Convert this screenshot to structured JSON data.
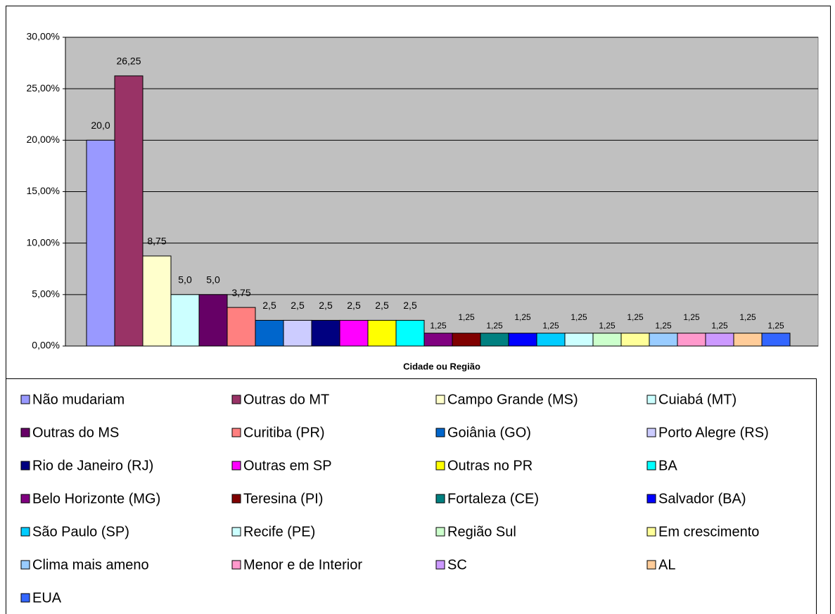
{
  "chart_data": {
    "type": "bar",
    "xlabel": "Cidade ou Região",
    "ylim": [
      0,
      30
    ],
    "yticks": [
      {
        "value": 0,
        "label": "0,00%"
      },
      {
        "value": 5,
        "label": "5,00%"
      },
      {
        "value": 10,
        "label": "10,00%"
      },
      {
        "value": 15,
        "label": "15,00%"
      },
      {
        "value": 20,
        "label": "20,00%"
      },
      {
        "value": 25,
        "label": "25,00%"
      },
      {
        "value": 30,
        "label": "30,00%"
      }
    ],
    "grid": true,
    "plot_color": "#c0c0c0",
    "series": [
      {
        "name": "Não mudariam",
        "color": "#9999ff",
        "values": [
          20.0
        ],
        "value_labels": [
          "20,0"
        ]
      },
      {
        "name": "Outras do MT",
        "color": "#993366",
        "values": [
          26.25
        ],
        "value_labels": [
          "26,25"
        ]
      },
      {
        "name": "Campo Grande (MS)",
        "color": "#ffffcc",
        "values": [
          8.75
        ],
        "value_labels": [
          "8,75"
        ]
      },
      {
        "name": "Cuiabá (MT)",
        "color": "#ccffff",
        "values": [
          5.0
        ],
        "value_labels": [
          "5,0"
        ]
      },
      {
        "name": "Outras do MS",
        "color": "#660066",
        "values": [
          5.0
        ],
        "value_labels": [
          "5,0"
        ]
      },
      {
        "name": "Curitiba (PR)",
        "color": "#ff8080",
        "values": [
          3.75
        ],
        "value_labels": [
          "3,75"
        ]
      },
      {
        "name": "Goiânia (GO)",
        "color": "#0066cc",
        "values": [
          2.5
        ],
        "value_labels": [
          "2,5"
        ]
      },
      {
        "name": "Porto Alegre (RS)",
        "color": "#ccccff",
        "values": [
          2.5
        ],
        "value_labels": [
          "2,5"
        ]
      },
      {
        "name": "Rio de Janeiro (RJ)",
        "color": "#000080",
        "values": [
          2.5
        ],
        "value_labels": [
          "2,5"
        ]
      },
      {
        "name": "Outras em SP",
        "color": "#ff00ff",
        "values": [
          2.5
        ],
        "value_labels": [
          "2,5"
        ]
      },
      {
        "name": "Outras no PR",
        "color": "#ffff00",
        "values": [
          2.5
        ],
        "value_labels": [
          "2,5"
        ]
      },
      {
        "name": "BA",
        "color": "#00ffff",
        "values": [
          2.5
        ],
        "value_labels": [
          "2,5"
        ]
      },
      {
        "name": "Belo Horizonte (MG)",
        "color": "#800080",
        "values": [
          1.25
        ],
        "value_labels": [
          "1,25"
        ]
      },
      {
        "name": "Teresina (PI)",
        "color": "#800000",
        "values": [
          1.25
        ],
        "value_labels": [
          "1,25"
        ]
      },
      {
        "name": "Fortaleza (CE)",
        "color": "#008080",
        "values": [
          1.25
        ],
        "value_labels": [
          "1,25"
        ]
      },
      {
        "name": "Salvador (BA)",
        "color": "#0000ff",
        "values": [
          1.25
        ],
        "value_labels": [
          "1,25"
        ]
      },
      {
        "name": "São Paulo (SP)",
        "color": "#00ccff",
        "values": [
          1.25
        ],
        "value_labels": [
          "1,25"
        ]
      },
      {
        "name": "Recife (PE)",
        "color": "#ccffff",
        "values": [
          1.25
        ],
        "value_labels": [
          "1,25"
        ]
      },
      {
        "name": "Região Sul",
        "color": "#ccffcc",
        "values": [
          1.25
        ],
        "value_labels": [
          "1,25"
        ]
      },
      {
        "name": "Em crescimento",
        "color": "#ffff99",
        "values": [
          1.25
        ],
        "value_labels": [
          "1,25"
        ]
      },
      {
        "name": "Clima mais ameno",
        "color": "#99ccff",
        "values": [
          1.25
        ],
        "value_labels": [
          "1,25"
        ]
      },
      {
        "name": "Menor e de Interior",
        "color": "#ff99cc",
        "values": [
          1.25
        ],
        "value_labels": [
          "1,25"
        ]
      },
      {
        "name": "SC",
        "color": "#cc99ff",
        "values": [
          1.25
        ],
        "value_labels": [
          "1,25"
        ]
      },
      {
        "name": "AL",
        "color": "#ffcc99",
        "values": [
          1.25
        ],
        "value_labels": [
          "1,25"
        ]
      },
      {
        "name": "EUA",
        "color": "#3366ff",
        "values": [
          1.25
        ],
        "value_labels": [
          "1,25"
        ]
      }
    ]
  }
}
